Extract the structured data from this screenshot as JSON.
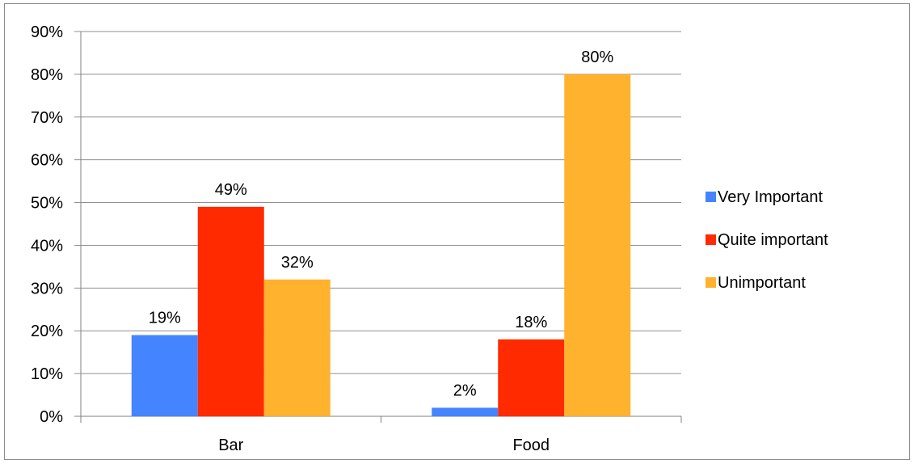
{
  "chart_data": {
    "type": "bar",
    "categories": [
      "Bar",
      "Food"
    ],
    "series": [
      {
        "name": "Very Important",
        "values": [
          19,
          2
        ],
        "labels": [
          "19%",
          "2%"
        ],
        "color": "#4584ff"
      },
      {
        "name": "Quite important",
        "values": [
          49,
          18
        ],
        "labels": [
          "49%",
          "18%"
        ],
        "color": "#ff2a00"
      },
      {
        "name": "Unimportant",
        "values": [
          32,
          80
        ],
        "labels": [
          "32%",
          "80%"
        ],
        "color": "#ffb22e"
      }
    ],
    "ylim": [
      0,
      90
    ],
    "yticks": [
      "0%",
      "10%",
      "20%",
      "30%",
      "40%",
      "50%",
      "60%",
      "70%",
      "80%",
      "90%"
    ],
    "grid": true,
    "legend_position": "right",
    "title": "",
    "xlabel": "",
    "ylabel": ""
  }
}
